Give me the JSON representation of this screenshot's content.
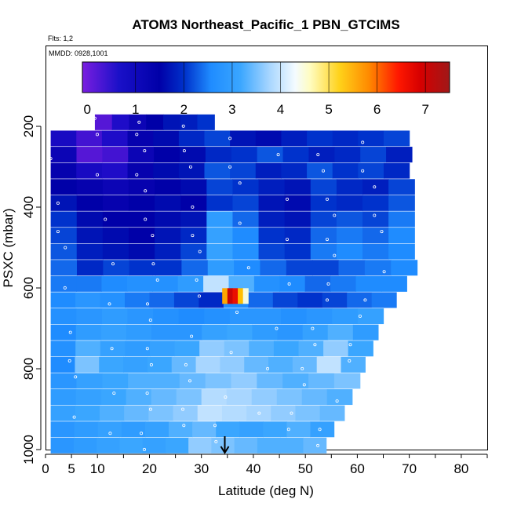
{
  "chart_data": {
    "type": "heatmap",
    "title": "ATOM3 Northeast_Pacific_1 PBN_GTCIMS",
    "flights_label": "Flts: 1,2",
    "date_label": "MMDD: 0928,1001",
    "xlabel": "Latitude (deg N)",
    "ylabel": "PSXC (mbar)",
    "xlim": [
      0,
      85
    ],
    "ylim": [
      1000,
      0
    ],
    "x_ticks": [
      "0",
      "5",
      "10",
      "20",
      "30",
      "40",
      "50",
      "60",
      "70",
      "80"
    ],
    "x_tick_values": [
      0,
      5,
      10,
      20,
      30,
      40,
      50,
      60,
      70,
      80
    ],
    "y_ticks": [
      "200",
      "400",
      "600",
      "800",
      "1000"
    ],
    "y_tick_values": [
      200,
      400,
      600,
      800,
      1000
    ],
    "colorbar": {
      "ticks": [
        "0",
        "1",
        "2",
        "3",
        "4",
        "5",
        "6",
        "7"
      ],
      "range": [
        -0.1,
        7.5
      ]
    },
    "marker_latitude": 34.5,
    "bands": [
      {
        "p": 190,
        "lat_min": 9.5,
        "lat_max": 32.5,
        "values": [
          0.2,
          0.5,
          0.8,
          1.0,
          1.2,
          1.3,
          1.5
        ]
      },
      {
        "p": 230,
        "lat_min": 1,
        "lat_max": 70,
        "values": [
          0.6,
          0.3,
          0.5,
          0.9,
          1.1,
          1.4,
          1.6,
          1.2,
          1.1,
          1.3,
          1.5,
          1.4,
          1.5,
          1.6
        ]
      },
      {
        "p": 270,
        "lat_min": 1,
        "lat_max": 70.5,
        "values": [
          0.8,
          0.2,
          0.3,
          0.8,
          1.0,
          1.1,
          1.4,
          1.5,
          1.7,
          1.5,
          1.3,
          1.4,
          1.6,
          1.3
        ]
      },
      {
        "p": 310,
        "lat_min": 1,
        "lat_max": 70,
        "values": [
          0.9,
          0.6,
          0.5,
          0.9,
          1.1,
          1.2,
          1.7,
          1.6,
          1.3,
          1.4,
          1.7,
          1.5,
          1.6,
          1.4
        ]
      },
      {
        "p": 350,
        "lat_min": 1,
        "lat_max": 71,
        "values": [
          1.0,
          0.9,
          0.8,
          0.9,
          1.0,
          1.1,
          1.6,
          1.5,
          1.3,
          1.2,
          1.6,
          1.4,
          1.3,
          1.6
        ]
      },
      {
        "p": 390,
        "lat_min": 1,
        "lat_max": 71,
        "values": [
          1.2,
          1.0,
          0.9,
          1.0,
          1.1,
          1.0,
          1.5,
          1.6,
          1.2,
          1.1,
          1.5,
          1.4,
          1.5,
          1.7
        ]
      },
      {
        "p": 430,
        "lat_min": 1,
        "lat_max": 71,
        "values": [
          1.5,
          1.1,
          1.0,
          1.0,
          1.1,
          1.2,
          2.3,
          1.8,
          1.3,
          1.2,
          1.6,
          1.7,
          1.6,
          1.9
        ]
      },
      {
        "p": 470,
        "lat_min": 1,
        "lat_max": 71,
        "values": [
          1.6,
          1.2,
          1.1,
          1.0,
          1.2,
          1.4,
          2.4,
          2.0,
          1.5,
          1.4,
          1.8,
          1.9,
          1.8,
          2.0
        ]
      },
      {
        "p": 510,
        "lat_min": 1,
        "lat_max": 71,
        "values": [
          1.7,
          1.3,
          1.2,
          1.1,
          1.3,
          1.6,
          2.4,
          2.1,
          1.6,
          1.5,
          1.9,
          2.0,
          1.9,
          2.0
        ]
      },
      {
        "p": 550,
        "lat_min": 1,
        "lat_max": 71.5,
        "values": [
          1.8,
          1.4,
          1.6,
          1.5,
          1.5,
          1.8,
          2.3,
          2.0,
          1.8,
          1.6,
          1.6,
          1.8,
          1.9,
          2.0
        ]
      },
      {
        "p": 590,
        "lat_min": 1,
        "lat_max": 69.5,
        "values": [
          1.9,
          1.9,
          2.0,
          2.1,
          2.1,
          2.3,
          3.2,
          2.6,
          2.1,
          2.0,
          1.8,
          1.9,
          2.0,
          2.0
        ]
      },
      {
        "p": 630,
        "lat_min": 1,
        "lat_max": 67.5,
        "values": [
          2.0,
          2.2,
          2.1,
          1.9,
          1.8,
          1.6,
          1.4,
          2.0,
          1.8,
          1.6,
          1.5,
          1.6,
          1.8,
          1.9
        ]
      },
      {
        "p": 670,
        "lat_min": 1,
        "lat_max": 65,
        "values": [
          2.1,
          2.2,
          2.3,
          2.2,
          2.1,
          2.0,
          2.1,
          2.2,
          2.2,
          2.1,
          2.2,
          2.3,
          2.4
        ]
      },
      {
        "p": 710,
        "lat_min": 1,
        "lat_max": 64,
        "values": [
          2.0,
          2.3,
          2.4,
          2.3,
          2.2,
          2.2,
          2.4,
          2.5,
          2.3,
          2.2,
          2.4,
          2.6,
          2.3
        ]
      },
      {
        "p": 750,
        "lat_min": 1,
        "lat_max": 63,
        "values": [
          2.1,
          2.6,
          2.4,
          2.3,
          2.4,
          2.5,
          2.9,
          2.8,
          2.6,
          2.5,
          2.6,
          2.9,
          2.5
        ]
      },
      {
        "p": 790,
        "lat_min": 1,
        "lat_max": 61.5,
        "values": [
          2.0,
          2.8,
          2.5,
          2.4,
          2.5,
          2.7,
          3.0,
          2.9,
          2.7,
          2.6,
          2.7,
          3.2,
          2.6
        ]
      },
      {
        "p": 830,
        "lat_min": 1,
        "lat_max": 60.5,
        "values": [
          2.2,
          2.4,
          2.5,
          2.6,
          2.6,
          2.7,
          2.8,
          2.9,
          2.7,
          2.6,
          2.7,
          2.8
        ]
      },
      {
        "p": 870,
        "lat_min": 1,
        "lat_max": 59,
        "values": [
          2.3,
          2.4,
          2.5,
          2.6,
          2.7,
          2.8,
          3.1,
          3.0,
          2.9,
          2.8,
          2.7,
          2.6
        ]
      },
      {
        "p": 910,
        "lat_min": 1,
        "lat_max": 57.5,
        "values": [
          2.4,
          2.5,
          2.6,
          2.7,
          2.8,
          2.9,
          3.2,
          3.1,
          3.0,
          2.9,
          2.8,
          2.7
        ]
      },
      {
        "p": 950,
        "lat_min": 1,
        "lat_max": 55.5,
        "values": [
          2.2,
          2.3,
          2.4,
          2.3,
          2.4,
          2.6,
          2.7,
          2.5,
          2.4,
          2.5,
          2.6,
          2.4
        ]
      },
      {
        "p": 990,
        "lat_min": 1,
        "lat_max": 54,
        "values": [
          2.2,
          2.3,
          2.4,
          2.5,
          2.4,
          2.5,
          2.9,
          2.8,
          2.7,
          2.6,
          2.6,
          2.7
        ]
      }
    ],
    "hotspot": {
      "p": 620,
      "lat_min": 34,
      "lat_max": 39,
      "values": [
        5.2,
        6.8,
        6.3,
        5.0,
        3.8
      ]
    }
  }
}
